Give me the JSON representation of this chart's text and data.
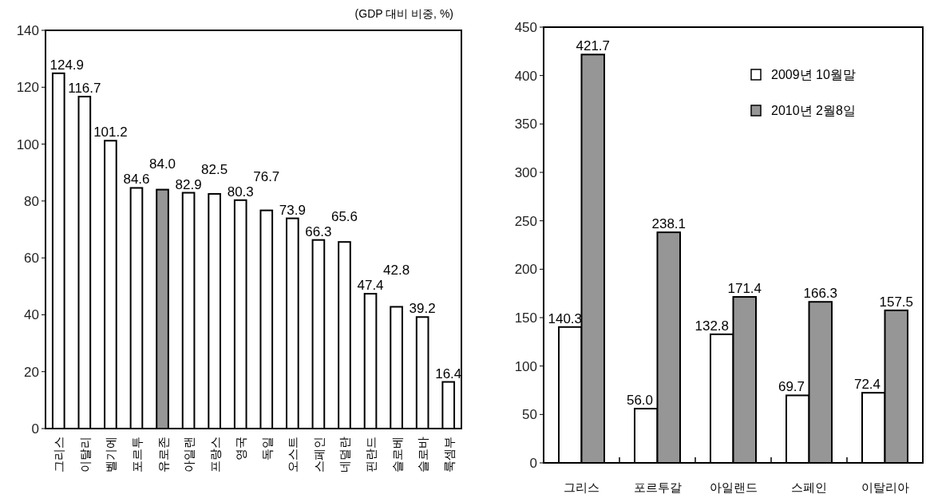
{
  "chart_data": [
    {
      "type": "bar",
      "categories": [
        "그리스",
        "이탈리",
        "벨기에",
        "포르투",
        "유로존",
        "아일랜",
        "프랑스",
        "영국",
        "독일",
        "오스트",
        "스페인",
        "네덜란",
        "핀란드",
        "슬로베",
        "슬로바",
        "룩셈부"
      ],
      "values": [
        124.9,
        116.7,
        101.2,
        84.6,
        84.0,
        82.9,
        82.5,
        80.3,
        76.7,
        73.9,
        66.3,
        65.6,
        47.4,
        42.8,
        39.2,
        16.4
      ],
      "colors": [
        "#ffffff",
        "#ffffff",
        "#ffffff",
        "#ffffff",
        "#969696",
        "#ffffff",
        "#ffffff",
        "#ffffff",
        "#ffffff",
        "#ffffff",
        "#ffffff",
        "#ffffff",
        "#ffffff",
        "#ffffff",
        "#ffffff",
        "#ffffff"
      ],
      "value_labels": [
        "124.9",
        "116.7",
        "101.2",
        "84.6",
        "84.0",
        "82.9",
        "82.5",
        "80.3",
        "76.7",
        "73.9",
        "66.3",
        "65.6",
        "47.4",
        "42.8",
        "39.2",
        "16.4"
      ],
      "ylim": [
        0,
        140
      ],
      "yticks": [
        0,
        20,
        40,
        60,
        80,
        100,
        120,
        140
      ],
      "annotations": [
        "(GDP 대비 비중, %)"
      ]
    },
    {
      "type": "bar",
      "categories": [
        "그리스",
        "포르투갈",
        "아일랜드",
        "스페인",
        "이탈리아"
      ],
      "series": [
        {
          "name": "2009년 10월말",
          "color": "#ffffff",
          "values": [
            140.3,
            56.0,
            132.8,
            69.7,
            72.4
          ],
          "value_labels": [
            "140.3",
            "56.0",
            "132.8",
            "69.7",
            "72.4"
          ]
        },
        {
          "name": "2010년 2월8일",
          "color": "#969696",
          "values": [
            421.7,
            238.1,
            171.4,
            166.3,
            157.5
          ],
          "value_labels": [
            "421.7",
            "238.1",
            "171.4",
            "166.3",
            "157.5"
          ]
        }
      ],
      "ylim": [
        0,
        450
      ],
      "yticks": [
        0,
        50,
        100,
        150,
        200,
        250,
        300,
        350,
        400,
        450
      ],
      "legend": "top right"
    }
  ]
}
